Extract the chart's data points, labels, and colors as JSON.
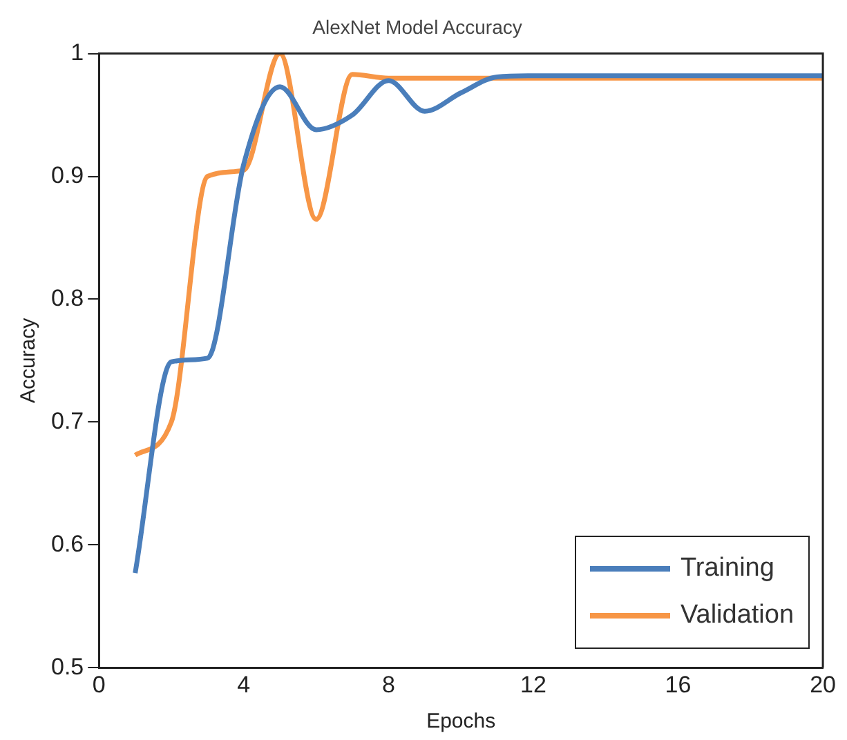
{
  "chart_data": {
    "type": "line",
    "title": "AlexNet Model Accuracy",
    "xlabel": "Epochs",
    "ylabel": "Accuracy",
    "x": [
      1,
      2,
      3,
      4,
      5,
      6,
      7,
      8,
      9,
      10,
      11,
      12,
      13,
      14,
      15,
      16,
      17,
      18,
      19,
      20
    ],
    "series": [
      {
        "name": "Training",
        "color": "#4a7ebb",
        "values": [
          0.577,
          0.749,
          0.752,
          0.91,
          0.973,
          0.938,
          0.95,
          0.978,
          0.953,
          0.968,
          0.981,
          0.982,
          0.982,
          0.982,
          0.982,
          0.982,
          0.982,
          0.982,
          0.982,
          0.982
        ]
      },
      {
        "name": "Validation",
        "color": "#f79646",
        "values": [
          0.673,
          0.7,
          0.9,
          0.905,
          1.0,
          0.865,
          0.983,
          0.98,
          0.98,
          0.98,
          0.98,
          0.98,
          0.98,
          0.98,
          0.98,
          0.98,
          0.98,
          0.98,
          0.98,
          0.98
        ]
      }
    ],
    "xlim": [
      0,
      20
    ],
    "xticks": [
      0,
      4,
      8,
      12,
      16,
      20
    ],
    "ylim": [
      0.5,
      1
    ],
    "yticks": [
      0.5,
      0.6,
      0.7,
      0.8,
      0.9,
      1
    ],
    "grid": false,
    "legend": "bottom right",
    "marker": "none",
    "line_style": "solid"
  }
}
